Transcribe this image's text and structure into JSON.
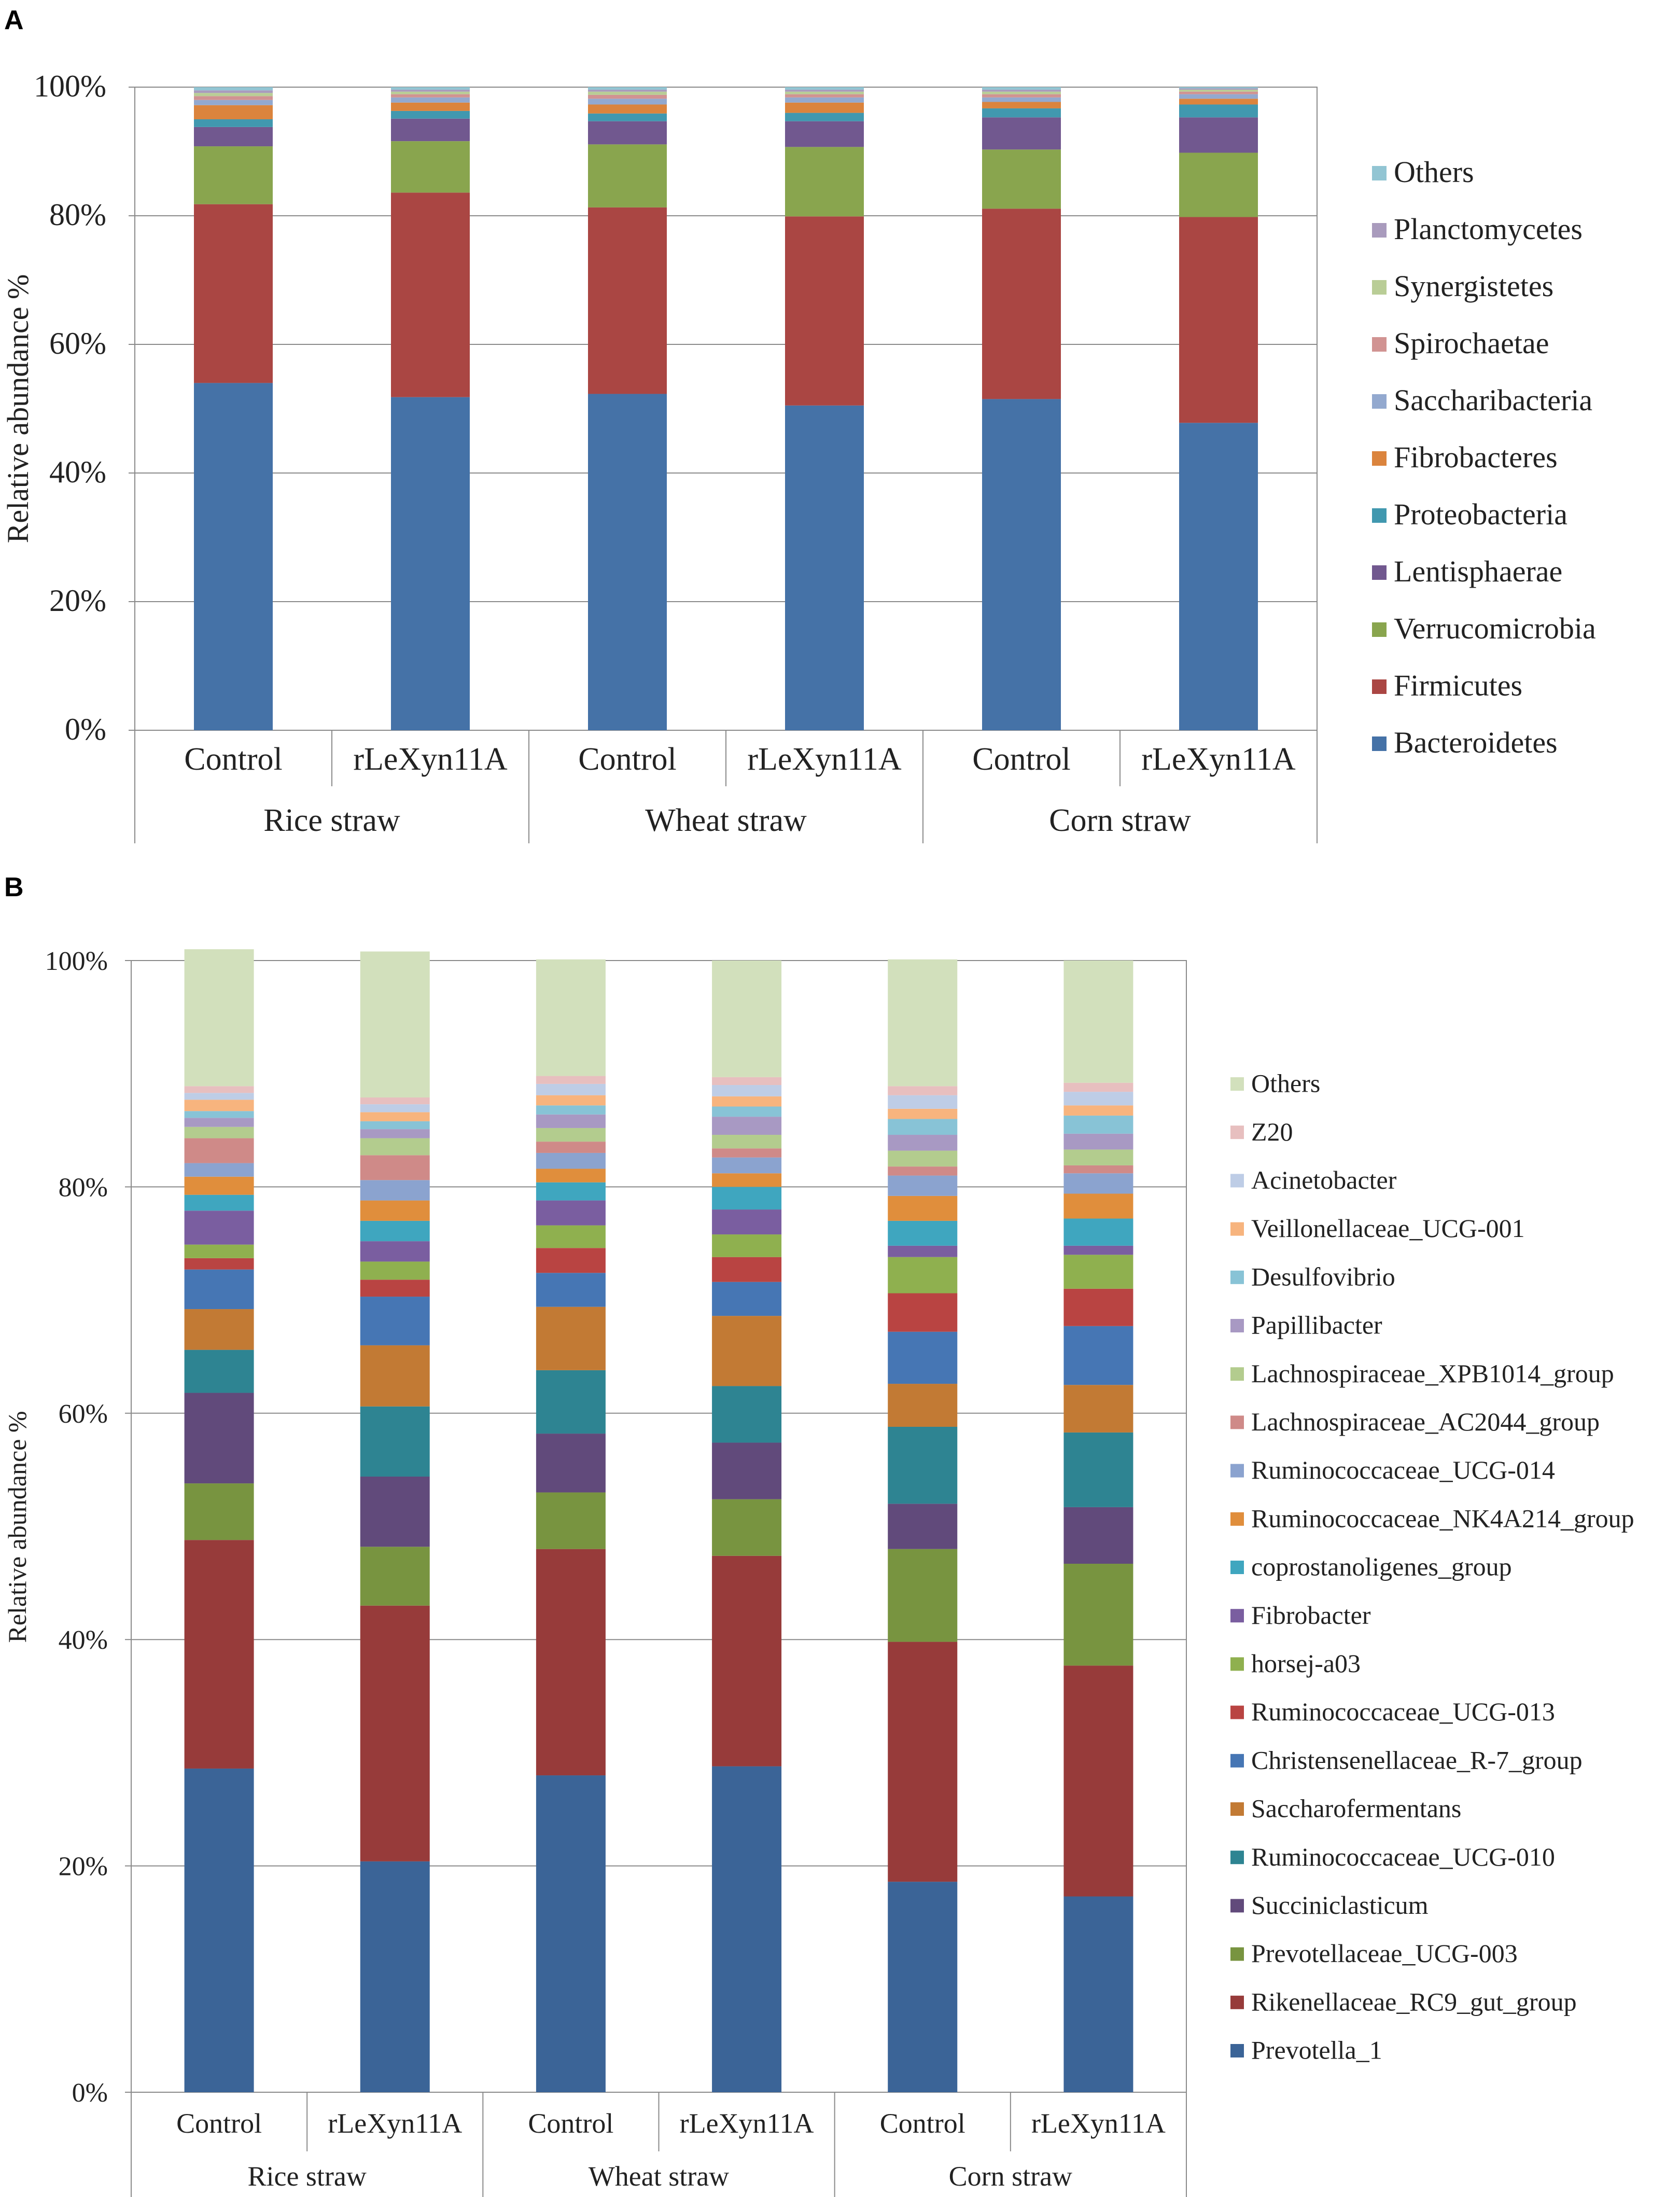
{
  "chart_data": [
    {
      "type": "bar",
      "stacked": true,
      "panel_label": "A",
      "ylabel": "Relative abundance %",
      "yticks": [
        "0%",
        "20%",
        "40%",
        "60%",
        "80%",
        "100%"
      ],
      "ylim": [
        0,
        100
      ],
      "grid": true,
      "legend_position": "right",
      "categories": [
        "Control",
        "rLeXyn11A",
        "Control",
        "rLeXyn11A",
        "Control",
        "rLeXyn11A"
      ],
      "groups": [
        "Rice straw",
        "Wheat straw",
        "Corn straw"
      ],
      "series": [
        {
          "name": "Bacteroidetes",
          "color": "#4572A7",
          "values": [
            54.0,
            51.8,
            52.3,
            50.5,
            51.5,
            47.8
          ]
        },
        {
          "name": "Firmicutes",
          "color": "#AA4643",
          "values": [
            27.8,
            31.8,
            29.0,
            29.4,
            29.6,
            32.0
          ]
        },
        {
          "name": "Verrucomicrobia",
          "color": "#89A54E",
          "values": [
            9.0,
            8.0,
            9.8,
            10.8,
            9.2,
            10.0
          ]
        },
        {
          "name": "Lentisphaerae",
          "color": "#71588F",
          "values": [
            3.0,
            3.5,
            3.6,
            4.0,
            5.0,
            5.5
          ]
        },
        {
          "name": "Proteobacteria",
          "color": "#4198AF",
          "values": [
            1.2,
            1.2,
            1.2,
            1.3,
            1.4,
            2.0
          ]
        },
        {
          "name": "Fibrobacteres",
          "color": "#DB843D",
          "values": [
            2.2,
            1.3,
            1.4,
            1.6,
            1.0,
            0.9
          ]
        },
        {
          "name": "Saccharibacteria",
          "color": "#93A9CF",
          "values": [
            0.8,
            0.8,
            0.9,
            0.8,
            0.7,
            0.7
          ]
        },
        {
          "name": "Spirochaetae",
          "color": "#D19392",
          "values": [
            0.6,
            0.5,
            0.6,
            0.5,
            0.5,
            0.4
          ]
        },
        {
          "name": "Synergistetes",
          "color": "#B9CD96",
          "values": [
            0.5,
            0.4,
            0.5,
            0.4,
            0.4,
            0.3
          ]
        },
        {
          "name": "Planctomycetes",
          "color": "#A99BBD",
          "values": [
            0.4,
            0.3,
            0.3,
            0.3,
            0.3,
            0.2
          ]
        },
        {
          "name": "Others",
          "color": "#92C5D3",
          "values": [
            0.5,
            0.4,
            0.4,
            0.4,
            0.4,
            0.2
          ]
        }
      ]
    },
    {
      "type": "bar",
      "stacked": true,
      "panel_label": "B",
      "ylabel": "Relative abundance %",
      "yticks": [
        "0%",
        "20%",
        "40%",
        "60%",
        "80%",
        "100%"
      ],
      "ylim": [
        0,
        100
      ],
      "grid": true,
      "legend_position": "right",
      "categories": [
        "Control",
        "rLeXyn11A",
        "Control",
        "rLeXyn11A",
        "Control",
        "rLeXyn11A"
      ],
      "groups": [
        "Rice straw",
        "Wheat straw",
        "Corn straw"
      ],
      "series": [
        {
          "name": "Prevotella_1",
          "color": "#3B6497",
          "values": [
            28.6,
            20.4,
            28.0,
            28.8,
            18.6,
            17.3
          ]
        },
        {
          "name": "Rikenellaceae_RC9_gut_group",
          "color": "#973B3A",
          "values": [
            20.2,
            22.6,
            20.0,
            18.6,
            21.2,
            20.4
          ]
        },
        {
          "name": "Prevotellaceae_UCG-003",
          "color": "#789440",
          "values": [
            5.0,
            5.2,
            5.0,
            5.0,
            8.2,
            9.0
          ]
        },
        {
          "name": "Succiniclasticum",
          "color": "#614A7B",
          "values": [
            8.0,
            6.2,
            5.2,
            5.0,
            4.0,
            5.0
          ]
        },
        {
          "name": "Ruminococcaceae_UCG-010",
          "color": "#2E8492",
          "values": [
            3.8,
            6.2,
            5.6,
            5.0,
            6.8,
            6.6
          ]
        },
        {
          "name": "Saccharofermentans",
          "color": "#C27A34",
          "values": [
            3.6,
            5.4,
            5.6,
            6.2,
            3.8,
            4.2
          ]
        },
        {
          "name": "Christensenellaceae_R-7_group",
          "color": "#4676B4",
          "values": [
            3.5,
            4.3,
            3.0,
            3.0,
            4.6,
            5.2
          ]
        },
        {
          "name": "Ruminococcaceae_UCG-013",
          "color": "#B94442",
          "values": [
            1.0,
            1.5,
            2.2,
            2.2,
            3.4,
            3.3
          ]
        },
        {
          "name": "horsej-a03",
          "color": "#8FB04F",
          "values": [
            1.2,
            1.6,
            2.0,
            2.0,
            3.2,
            3.0
          ]
        },
        {
          "name": "Fibrobacter",
          "color": "#7A5EA0",
          "values": [
            3.0,
            1.8,
            2.2,
            2.2,
            1.0,
            0.8
          ]
        },
        {
          "name": "coprostanoligenes_group",
          "color": "#3FA6BF",
          "values": [
            1.4,
            1.8,
            1.6,
            2.0,
            2.2,
            2.4
          ]
        },
        {
          "name": "Ruminococcaceae_NK4A214_group",
          "color": "#E08E3C",
          "values": [
            1.6,
            1.8,
            1.2,
            1.2,
            2.2,
            2.2
          ]
        },
        {
          "name": "Ruminococcaceae_UCG-014",
          "color": "#8BA3CF",
          "values": [
            1.2,
            1.8,
            1.4,
            1.4,
            1.8,
            1.8
          ]
        },
        {
          "name": "Lachnospiraceae_AC2044_group",
          "color": "#CF8A88",
          "values": [
            2.2,
            2.2,
            1.0,
            0.8,
            0.8,
            0.7
          ]
        },
        {
          "name": "Lachnospiraceae_XPB1014_group",
          "color": "#B3CC8E",
          "values": [
            1.0,
            1.5,
            1.2,
            1.2,
            1.4,
            1.4
          ]
        },
        {
          "name": "Papillibacter",
          "color": "#A899C3",
          "values": [
            0.8,
            0.8,
            1.2,
            1.6,
            1.4,
            1.4
          ]
        },
        {
          "name": "Desulfovibrio",
          "color": "#88C3D6",
          "values": [
            0.6,
            0.7,
            0.8,
            0.9,
            1.4,
            1.6
          ]
        },
        {
          "name": "Veillonellaceae_UCG-001",
          "color": "#F7B47E",
          "values": [
            1.0,
            0.8,
            0.9,
            0.9,
            0.9,
            0.9
          ]
        },
        {
          "name": "Acinetobacter",
          "color": "#BECDE6",
          "values": [
            0.6,
            0.7,
            1.0,
            1.0,
            1.2,
            1.2
          ]
        },
        {
          "name": "Z20",
          "color": "#E7BFBF",
          "values": [
            0.6,
            0.6,
            0.7,
            0.7,
            0.8,
            0.8
          ]
        },
        {
          "name": "Others",
          "color": "#D2E0BC",
          "values": [
            12.1,
            12.9,
            10.3,
            10.3,
            11.2,
            10.8
          ]
        }
      ]
    }
  ]
}
